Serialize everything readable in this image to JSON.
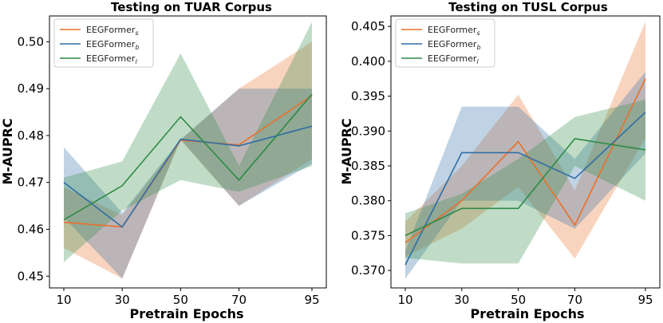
{
  "chart_data": [
    {
      "type": "line",
      "title": "Testing on TUAR Corpus",
      "xlabel": "Pretrain Epochs",
      "ylabel": "M-AUPRC",
      "x": [
        10,
        30,
        50,
        70,
        95
      ],
      "x_ticks": [
        "10",
        "30",
        "50",
        "70",
        "95"
      ],
      "ylim": [
        0.4475,
        0.5055
      ],
      "y_ticks": [
        0.45,
        0.46,
        0.47,
        0.48,
        0.49,
        0.5
      ],
      "y_tick_labels": [
        "0.45",
        "0.46",
        "0.47",
        "0.48",
        "0.49",
        "0.50"
      ],
      "legend_position": "top-left",
      "series": [
        {
          "name": "EEGFormer",
          "sub": "s",
          "color": "#e8702a",
          "values": [
            0.4615,
            0.4605,
            0.479,
            0.478,
            0.4885
          ],
          "upper": [
            0.469,
            0.463,
            0.479,
            0.49,
            0.5
          ],
          "lower": [
            0.456,
            0.4495,
            0.479,
            0.465,
            0.475
          ]
        },
        {
          "name": "EEGFormer",
          "sub": "b",
          "color": "#2f6ea5",
          "values": [
            0.47,
            0.4605,
            0.4792,
            0.4778,
            0.482
          ],
          "upper": [
            0.4775,
            0.4635,
            0.4792,
            0.49,
            0.49
          ],
          "lower": [
            0.4625,
            0.4495,
            0.4792,
            0.465,
            0.474
          ]
        },
        {
          "name": "EEGFormer",
          "sub": "l",
          "color": "#2e8a46",
          "values": [
            0.462,
            0.4693,
            0.484,
            0.4705,
            0.4888
          ],
          "upper": [
            0.471,
            0.4745,
            0.4975,
            0.4735,
            0.5042
          ],
          "lower": [
            0.453,
            0.464,
            0.4705,
            0.468,
            0.4735
          ]
        }
      ]
    },
    {
      "type": "line",
      "title": "Testing on TUSL Corpus",
      "xlabel": "Pretrain Epochs",
      "ylabel": "M-AUPRC",
      "x": [
        10,
        30,
        50,
        70,
        95
      ],
      "x_ticks": [
        "10",
        "30",
        "50",
        "70",
        "95"
      ],
      "ylim": [
        0.3675,
        0.4065
      ],
      "y_ticks": [
        0.37,
        0.375,
        0.38,
        0.385,
        0.39,
        0.395,
        0.4,
        0.405
      ],
      "y_tick_labels": [
        "0.370",
        "0.375",
        "0.380",
        "0.385",
        "0.390",
        "0.395",
        "0.400",
        "0.405"
      ],
      "legend_position": "top-left",
      "series": [
        {
          "name": "EEGFormer",
          "sub": "s",
          "color": "#e8702a",
          "values": [
            0.374,
            0.38,
            0.3885,
            0.3765,
            0.3975
          ],
          "upper": [
            0.377,
            0.385,
            0.3952,
            0.3815,
            0.4057
          ],
          "lower": [
            0.372,
            0.376,
            0.382,
            0.3717,
            0.389
          ]
        },
        {
          "name": "EEGFormer",
          "sub": "b",
          "color": "#2f6ea5",
          "values": [
            0.3708,
            0.3869,
            0.3869,
            0.3832,
            0.3927
          ],
          "upper": [
            0.3728,
            0.3935,
            0.3935,
            0.386,
            0.3985
          ],
          "lower": [
            0.3688,
            0.38,
            0.38,
            0.376,
            0.3868
          ]
        },
        {
          "name": "EEGFormer",
          "sub": "l",
          "color": "#2e8a46",
          "values": [
            0.375,
            0.3789,
            0.3789,
            0.3889,
            0.3873
          ],
          "upper": [
            0.3782,
            0.381,
            0.386,
            0.392,
            0.3945
          ],
          "lower": [
            0.3718,
            0.371,
            0.371,
            0.385,
            0.38
          ]
        }
      ]
    }
  ]
}
